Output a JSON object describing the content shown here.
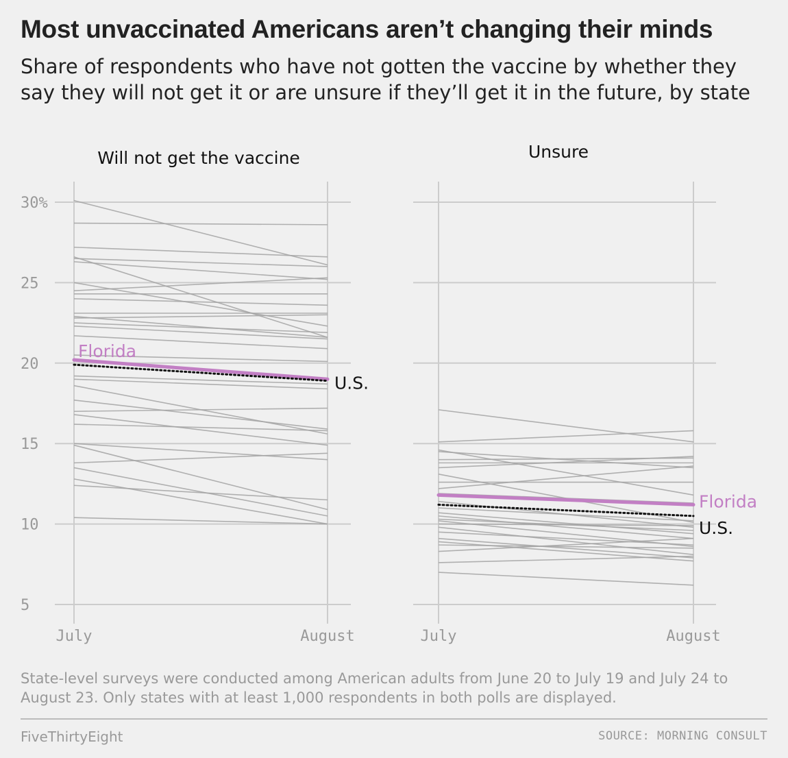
{
  "title": "Most unvaccinated Americans aren’t changing their minds",
  "subtitle": "Share of respondents who have not gotten the vaccine by whether they say they will not get it or are unsure if they’ll get it in the future, by state",
  "footnote": "State-level surveys were conducted among American adults from June 20 to July 19 and July 24 to August 23. Only states with at least 1,000 respondents in both polls are displayed.",
  "brand": "FiveThirtyEight",
  "source": "SOURCE: MORNING CONSULT",
  "colors": {
    "background": "#f0f0f0",
    "state_lines": "#a3a3a3",
    "florida": "#c27fc4",
    "us": "#111111",
    "grid": "#cccccc"
  },
  "chart_data": [
    {
      "type": "line",
      "title": "Will not get the vaccine",
      "x": [
        "July",
        "August"
      ],
      "ylim": [
        4,
        31
      ],
      "y_ticks": [
        30,
        25,
        20,
        15,
        10,
        5
      ],
      "y_tick_labels": [
        "30%",
        "25",
        "20",
        "15",
        "10",
        "5"
      ],
      "grid": true,
      "highlight": [
        {
          "name": "Florida",
          "values": [
            20.2,
            19.0
          ]
        },
        {
          "name": "U.S.",
          "values": [
            19.9,
            18.9
          ]
        }
      ],
      "states": [
        [
          30.1,
          26.1
        ],
        [
          28.7,
          28.6
        ],
        [
          27.2,
          26.6
        ],
        [
          26.5,
          26.0
        ],
        [
          26.6,
          21.6
        ],
        [
          26.3,
          25.2
        ],
        [
          25.0,
          22.3
        ],
        [
          24.5,
          25.3
        ],
        [
          24.3,
          24.3
        ],
        [
          24.0,
          23.6
        ],
        [
          23.1,
          23.1
        ],
        [
          22.9,
          21.6
        ],
        [
          22.8,
          23.0
        ],
        [
          22.5,
          21.9
        ],
        [
          22.3,
          21.5
        ],
        [
          21.7,
          20.9
        ],
        [
          20.5,
          20.1
        ],
        [
          19.2,
          18.7
        ],
        [
          19.0,
          18.4
        ],
        [
          18.6,
          15.6
        ],
        [
          17.7,
          15.9
        ],
        [
          17.0,
          17.2
        ],
        [
          16.8,
          14.9
        ],
        [
          16.2,
          15.8
        ],
        [
          15.0,
          14.0
        ],
        [
          14.9,
          10.9
        ],
        [
          13.8,
          14.4
        ],
        [
          13.5,
          10.5
        ],
        [
          12.8,
          10.0
        ],
        [
          12.4,
          11.5
        ],
        [
          10.4,
          10.0
        ]
      ]
    },
    {
      "type": "line",
      "title": "Unsure",
      "x": [
        "July",
        "August"
      ],
      "ylim": [
        4,
        31
      ],
      "y_ticks": [
        30,
        25,
        20,
        15,
        10,
        5
      ],
      "grid": true,
      "highlight": [
        {
          "name": "Florida",
          "values": [
            11.8,
            11.2
          ]
        },
        {
          "name": "U.S.",
          "values": [
            11.2,
            10.5
          ]
        }
      ],
      "states": [
        [
          17.1,
          15.1
        ],
        [
          15.1,
          15.8
        ],
        [
          14.6,
          11.8
        ],
        [
          14.5,
          13.5
        ],
        [
          14.0,
          14.1
        ],
        [
          13.8,
          13.8
        ],
        [
          13.5,
          14.2
        ],
        [
          13.1,
          10.1
        ],
        [
          12.6,
          12.6
        ],
        [
          12.2,
          13.6
        ],
        [
          11.9,
          11.3
        ],
        [
          11.4,
          9.8
        ],
        [
          11.0,
          10.2
        ],
        [
          10.7,
          9.4
        ],
        [
          10.5,
          9.1
        ],
        [
          10.3,
          9.6
        ],
        [
          10.2,
          8.6
        ],
        [
          10.0,
          9.9
        ],
        [
          9.8,
          8.1
        ],
        [
          9.5,
          8.7
        ],
        [
          9.1,
          7.9
        ],
        [
          8.9,
          7.7
        ],
        [
          8.7,
          8.5
        ],
        [
          8.3,
          9.1
        ],
        [
          7.6,
          8.0
        ],
        [
          7.0,
          6.2
        ]
      ]
    }
  ]
}
